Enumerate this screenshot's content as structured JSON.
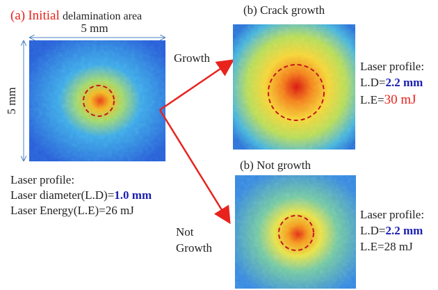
{
  "panel_a": {
    "label": "(a)",
    "title_highlight": "Initial",
    "title_rest": "delamination area",
    "width_label": "5 mm",
    "height_label": "5 mm",
    "profile_title": "Laser profile:",
    "diameter_prefix": "Laser diameter(L.D)=",
    "diameter_value": "1.0 mm",
    "energy_line": "Laser Energy(L.E)=26 mJ"
  },
  "arrows": {
    "up_label": "Growth",
    "down_label_1": "Not",
    "down_label_2": "Growth"
  },
  "panel_b_top": {
    "title": "(b) Crack growth",
    "profile_title": "Laser profile:",
    "diameter_prefix": "L.D=",
    "diameter_value": "2.2 mm",
    "energy_prefix": "L.E=",
    "energy_value": "30 mJ"
  },
  "panel_b_bottom": {
    "title": "(b) Not growth",
    "profile_title": "Laser profile:",
    "diameter_prefix": "L.D=",
    "diameter_value": "2.2 mm",
    "energy_line": "L.E=28 mJ"
  }
}
